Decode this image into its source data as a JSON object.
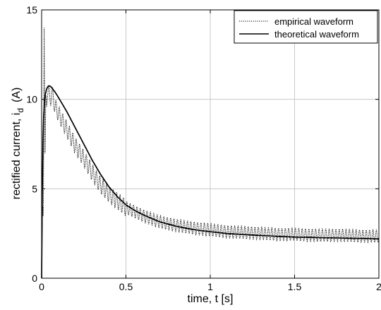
{
  "chart_data": {
    "type": "line",
    "title": "",
    "xlabel": "time, t [s]",
    "ylabel_main": "rectified current, i",
    "ylabel_sub": "d",
    "ylabel_unit": "(A)",
    "xlim": [
      0,
      2
    ],
    "ylim": [
      0,
      15
    ],
    "xticks": [
      0,
      0.5,
      1,
      1.5,
      2
    ],
    "xtick_labels": [
      "0",
      "0.5",
      "1",
      "1.5",
      "2"
    ],
    "yticks": [
      0,
      5,
      10,
      15
    ],
    "ytick_labels": [
      "0",
      "5",
      "10",
      "15"
    ],
    "grid": true,
    "legend_position": "top-right",
    "series": [
      {
        "name": "empirical waveform",
        "style": "dotted",
        "color": "#000000",
        "x": [
          0,
          0.005,
          0.01,
          0.015,
          0.02,
          0.025,
          0.03,
          0.04,
          0.05,
          0.06,
          0.08,
          0.1,
          0.15,
          0.2,
          0.25,
          0.3,
          0.35,
          0.4,
          0.45,
          0.5,
          0.6,
          0.7,
          0.8,
          0.9,
          1.0,
          1.1,
          1.2,
          1.3,
          1.4,
          1.5,
          1.6,
          1.7,
          1.8,
          1.9,
          2.0
        ],
        "values": [
          0,
          4.2,
          3.3,
          14.0,
          6.2,
          10.3,
          9.6,
          10.6,
          9.9,
          10.4,
          9.6,
          9.2,
          8.3,
          7.4,
          6.7,
          5.9,
          5.2,
          4.7,
          4.3,
          3.95,
          3.5,
          3.15,
          2.95,
          2.8,
          2.7,
          2.6,
          2.55,
          2.5,
          2.45,
          2.45,
          2.4,
          2.4,
          2.4,
          2.35,
          2.35
        ],
        "ripple_amplitude": 0.35,
        "ripple_period": 0.02
      },
      {
        "name": "theoretical waveform",
        "style": "solid",
        "color": "#000000",
        "x": [
          0,
          0.005,
          0.01,
          0.02,
          0.03,
          0.04,
          0.05,
          0.06,
          0.08,
          0.1,
          0.15,
          0.2,
          0.25,
          0.3,
          0.35,
          0.4,
          0.45,
          0.5,
          0.55,
          0.6,
          0.7,
          0.8,
          0.9,
          1.0,
          1.1,
          1.2,
          1.3,
          1.4,
          1.5,
          1.6,
          1.7,
          1.8,
          1.9,
          2.0
        ],
        "values": [
          0,
          6.0,
          8.8,
          10.2,
          10.6,
          10.75,
          10.75,
          10.65,
          10.4,
          10.1,
          9.3,
          8.4,
          7.5,
          6.6,
          5.8,
          5.1,
          4.55,
          4.1,
          3.8,
          3.55,
          3.15,
          2.9,
          2.72,
          2.6,
          2.5,
          2.44,
          2.39,
          2.34,
          2.3,
          2.28,
          2.26,
          2.24,
          2.22,
          2.2
        ]
      }
    ]
  },
  "colors": {
    "background": "#ffffff",
    "grid": "#c8c8c8",
    "axis": "#000000",
    "lines": "#000000"
  }
}
